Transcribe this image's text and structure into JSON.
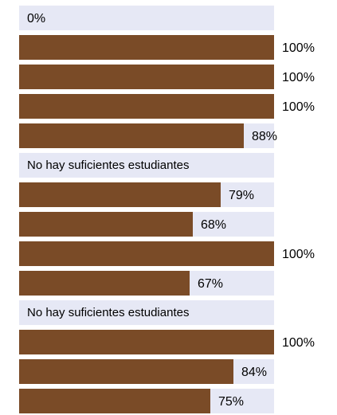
{
  "chart_data": {
    "type": "bar",
    "orientation": "horizontal",
    "xlim": [
      0,
      100
    ],
    "grid": false,
    "legend": "none",
    "bar_color": "#7a4b27",
    "track_color": "#e6e8f5",
    "rows": [
      {
        "value": 0,
        "label": "0%"
      },
      {
        "value": 100,
        "label": "100%"
      },
      {
        "value": 100,
        "label": "100%"
      },
      {
        "value": 100,
        "label": "100%"
      },
      {
        "value": 88,
        "label": "88%"
      },
      {
        "value": null,
        "label": "No hay suficientes estudiantes"
      },
      {
        "value": 79,
        "label": "79%"
      },
      {
        "value": 68,
        "label": "68%"
      },
      {
        "value": 100,
        "label": "100%"
      },
      {
        "value": 67,
        "label": "67%"
      },
      {
        "value": null,
        "label": "No hay suficientes estudiantes"
      },
      {
        "value": 100,
        "label": "100%"
      },
      {
        "value": 84,
        "label": "84%"
      },
      {
        "value": 75,
        "label": "75%"
      }
    ]
  }
}
